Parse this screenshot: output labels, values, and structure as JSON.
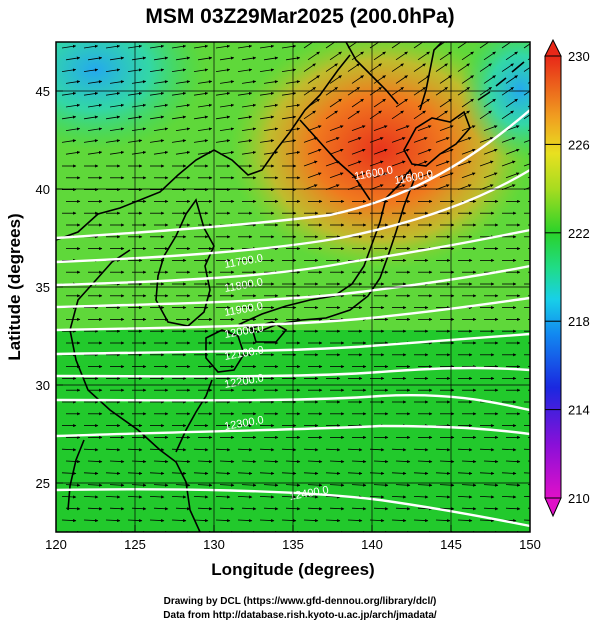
{
  "title": "MSM 03Z29Mar2025 (200.0hPa)",
  "xlabel": "Longitude (degrees)",
  "ylabel": "Latitude  (degrees)",
  "credits": {
    "line1": "Drawing by DCL (https://www.gfd-dennou.org/library/dcl/)",
    "line2": "Data from http://database.rish.kyoto-u.ac.jp/arch/jmadata/"
  },
  "map": {
    "lon_range": [
      120,
      150
    ],
    "lat_range": [
      22.5,
      47.5
    ],
    "lon_ticks": [
      "120",
      "125",
      "130",
      "135",
      "140",
      "145",
      "150"
    ],
    "lat_ticks": [
      "25",
      "30",
      "35",
      "40",
      "45"
    ]
  },
  "colorbar": {
    "min": 210,
    "max": 230,
    "labels": [
      "230",
      "226",
      "222",
      "218",
      "214",
      "210"
    ]
  },
  "contours": [
    {
      "label": "11600.0"
    },
    {
      "label": "11600.0"
    },
    {
      "label": "11700.0"
    },
    {
      "label": "11800.0"
    },
    {
      "label": "11900.0"
    },
    {
      "label": "12000.0"
    },
    {
      "label": "12100.0"
    },
    {
      "label": "12200.0"
    },
    {
      "label": "12300.0"
    },
    {
      "label": "12400.0"
    }
  ]
}
